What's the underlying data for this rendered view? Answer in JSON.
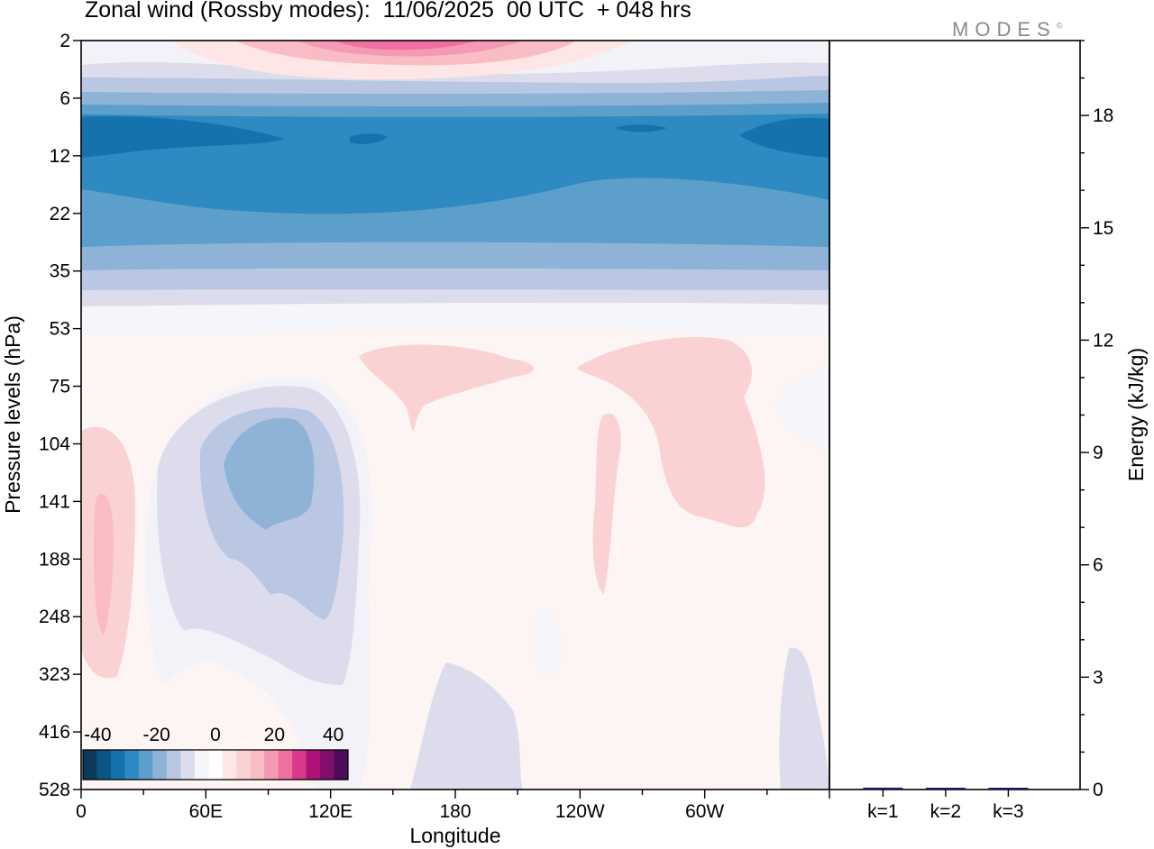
{
  "title": "Zonal wind (Rossby modes):  11/06/2025  00 UTC  + 048 hrs",
  "logo": "MODES",
  "logo_mark": "©",
  "colors": {
    "scale": [
      "#0b3a5c",
      "#0c5582",
      "#1672ad",
      "#2f8ac1",
      "#5d9fcb",
      "#8eb3d6",
      "#b9c7e3",
      "#dcdcec",
      "#f5f5fa",
      "#ffffff",
      "#fde6e5",
      "#fbd2d3",
      "#f9bcc5",
      "#f59ab4",
      "#ee6fa0",
      "#d9388b",
      "#ad1377",
      "#7f0f6a",
      "#4e0b5c"
    ]
  },
  "chart_data": [
    {
      "type": "heatmap",
      "title": "Zonal wind (Rossby modes):  11/06/2025  00 UTC  + 048 hrs",
      "xlabel": "Longitude",
      "ylabel": "Pressure levels (hPa)",
      "x_ticks": [
        "0",
        "60E",
        "120E",
        "180",
        "120W",
        "60W"
      ],
      "x_tick_values": [
        0,
        60,
        120,
        180,
        240,
        300
      ],
      "xlim": [
        0,
        360
      ],
      "y_ticks": [
        "2",
        "6",
        "12",
        "22",
        "35",
        "53",
        "75",
        "104",
        "141",
        "188",
        "248",
        "323",
        "416",
        "528"
      ],
      "y_scale": "model levels, pressure increasing downward",
      "colorbar": {
        "tick_labels": [
          "-40",
          "-20",
          "0",
          "20",
          "40"
        ],
        "tick_values": [
          -40,
          -20,
          0,
          20,
          40
        ],
        "range": [
          -45,
          45
        ],
        "step": 5,
        "placement": "bottom-left"
      },
      "fields": [
        {
          "description_level_band": "2",
          "value_range": [
            0,
            35
          ]
        },
        {
          "level": "12",
          "min_value": -25
        },
        {
          "level": "141",
          "min_value": -10,
          "max_value": 10
        }
      ]
    },
    {
      "type": "bar",
      "categories": [
        "k=1",
        "k=2",
        "k=3"
      ],
      "values": [
        0.05,
        0.03,
        0.02
      ],
      "ylabel": "Energy (kJ/kg)",
      "y_ticks": [
        "0",
        "3",
        "6",
        "9",
        "12",
        "15",
        "18"
      ],
      "y_tick_values": [
        0,
        3,
        6,
        9,
        12,
        15,
        18
      ],
      "ylim": [
        0,
        20
      ],
      "bar_color": "#1a1a6e"
    }
  ]
}
